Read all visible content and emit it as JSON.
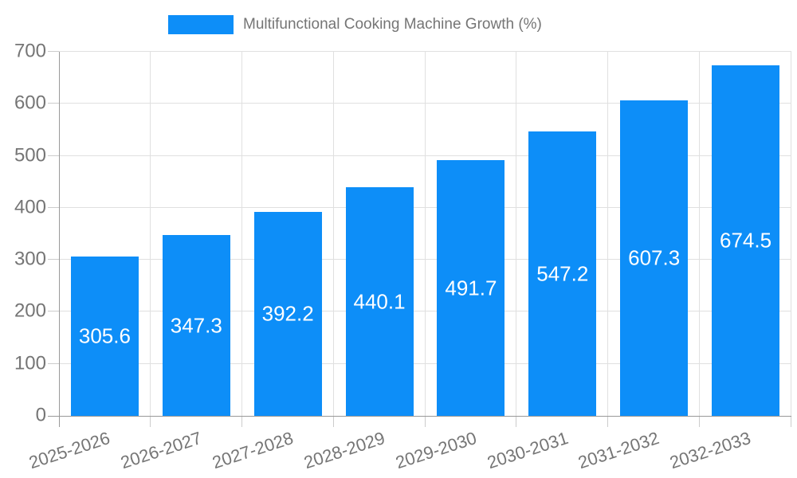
{
  "legend": {
    "label": "Multifunctional Cooking Machine Growth (%)"
  },
  "chart_data": {
    "type": "bar",
    "title": "Multifunctional Cooking Machine Growth (%)",
    "categories": [
      "2025-2026",
      "2026-2027",
      "2027-2028",
      "2028-2029",
      "2029-2030",
      "2030-2031",
      "2031-2032",
      "2032-2033"
    ],
    "values": [
      305.6,
      347.3,
      392.2,
      440.1,
      491.7,
      547.2,
      607.3,
      674.5
    ],
    "value_labels": [
      "305.6",
      "347.3",
      "392.2",
      "440.1",
      "491.7",
      "547.2",
      "607.3",
      "674.5"
    ],
    "xlabel": "",
    "ylabel": "",
    "ylim": [
      0,
      700
    ],
    "y_ticks": [
      0,
      100,
      200,
      300,
      400,
      500,
      600,
      700
    ],
    "y_tick_labels": [
      "0",
      "100",
      "200",
      "300",
      "400",
      "500",
      "600",
      "700"
    ],
    "grid": true,
    "legend_position": "top-center",
    "x_label_rotation_deg": -18,
    "colors": {
      "bar": "#0d8ef8",
      "value_label": "#ffffff",
      "axis_text": "#757575",
      "legend_text": "#757575",
      "grid_line": "#e0e0e0",
      "axis_line": "#999999",
      "tick": "#cccccc",
      "background": "#ffffff"
    }
  }
}
